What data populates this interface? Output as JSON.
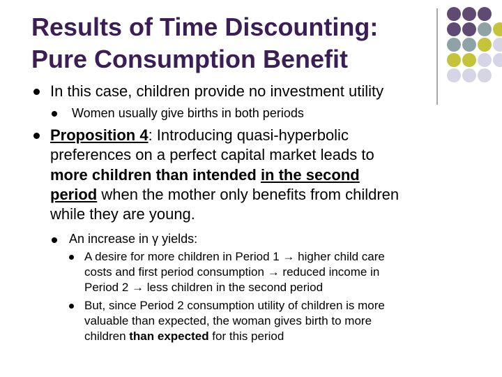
{
  "slide": {
    "title_line1": "Results of Time Discounting:",
    "title_line2": "Pure Consumption Benefit"
  },
  "bullets": {
    "b1_text": "In this case, children provide no investment utility",
    "b1_sub": "Women usually give births in both periods",
    "prop_label": "Proposition 4",
    "prop_colon": ": Introducing quasi-hyperbolic",
    "prop_line2": "preferences on a perfect capital market leads to",
    "prop_bold": "more children than intended",
    "prop_space": " ",
    "prop_u1": "in the second",
    "prop_u2": "period",
    "prop_line4_rest": " when the mother only benefits from children",
    "prop_line5": "while they are young.",
    "gamma_pre": "An increase in ",
    "gamma_sym": "γ",
    "gamma_post": " yields:",
    "s1_l1_a": "A desire for more children in Period 1 ",
    "s1_l1_b": " higher child care",
    "s1_l2_a": "costs and first period consumption ",
    "s1_l2_b": " reduced income in",
    "s1_l3_a": "Period 2 ",
    "s1_l3_b": " less children in the second period",
    "s2_l1": "But, since Period 2 consumption utility of children is more",
    "s2_l2": "valuable than expected, the woman gives birth to more",
    "s2_l3_a": "children ",
    "s2_l3_bold": "than expected",
    "s2_l3_c": " for this period",
    "arrow": "→"
  },
  "colors": {
    "title": "#3b1e56",
    "dot_purple": "#5e4a72",
    "dot_grey": "#8ea2a8",
    "dot_olive": "#c4c33a",
    "dot_lavender": "#d5d5e6"
  }
}
